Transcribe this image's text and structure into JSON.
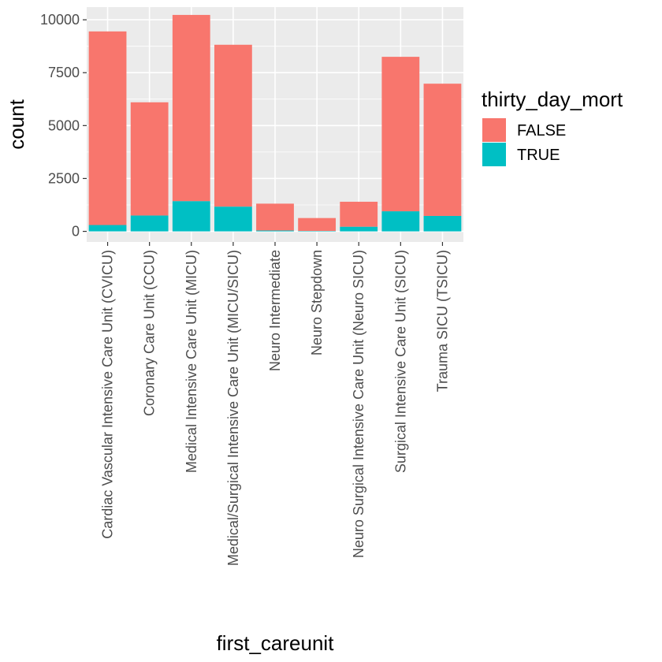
{
  "chart_data": {
    "type": "bar",
    "stacked": true,
    "xlabel": "first_careunit",
    "ylabel": "count",
    "ylim": [
      -500,
      10600
    ],
    "yticks": [
      0,
      2500,
      5000,
      7500,
      10000
    ],
    "ytick_labels": [
      "0",
      "2500",
      "5000",
      "7500",
      "10000"
    ],
    "grid": true,
    "legend": {
      "title": "thirty_day_mort",
      "position": "right"
    },
    "categories": [
      "Cardiac Vascular Intensive Care Unit (CVICU)",
      "Coronary Care Unit (CCU)",
      "Medical Intensive Care Unit (MICU)",
      "Medical/Surgical Intensive Care Unit (MICU/SICU)",
      "Neuro Intermediate",
      "Neuro Stepdown",
      "Neuro Surgical Intensive Care Unit (Neuro SICU)",
      "Surgical Intensive Care Unit (SICU)",
      "Trauma SICU (TSICU)"
    ],
    "series": [
      {
        "name": "FALSE",
        "color": "#F8766D",
        "values": [
          9150,
          5350,
          8800,
          7650,
          1270,
          610,
          1180,
          7300,
          6250
        ]
      },
      {
        "name": "TRUE",
        "color": "#00BFC4",
        "values": [
          300,
          750,
          1430,
          1170,
          40,
          20,
          220,
          950,
          730
        ]
      }
    ]
  }
}
